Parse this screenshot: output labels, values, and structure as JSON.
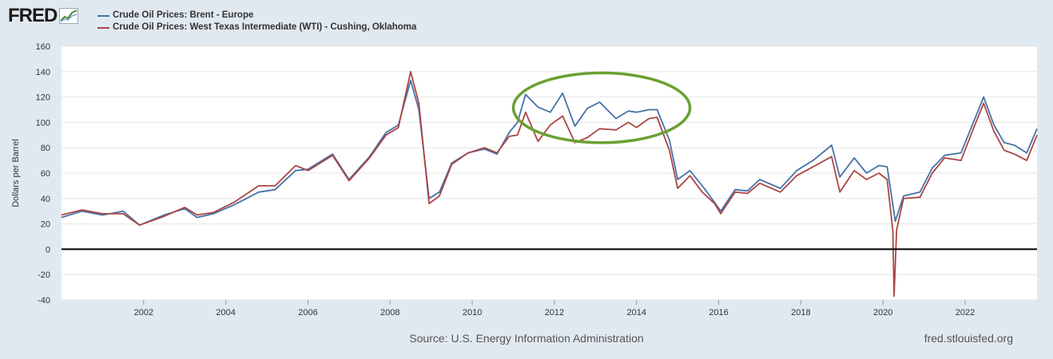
{
  "logo": {
    "text": "FRED"
  },
  "chart_data": {
    "type": "line",
    "title": "",
    "ylabel": "Dollars per Barrel",
    "xlabel": "",
    "ylim": [
      -40,
      160
    ],
    "xlim": [
      2000.0,
      2023.75
    ],
    "yticks": [
      -40,
      -20,
      0,
      20,
      40,
      60,
      80,
      100,
      120,
      140,
      160
    ],
    "xticks": [
      2002,
      2004,
      2006,
      2008,
      2010,
      2012,
      2014,
      2016,
      2018,
      2020,
      2022
    ],
    "grid": true,
    "legend_position": "top-left",
    "colors": {
      "brent": "#4572a7",
      "wti": "#aa4643",
      "highlight": "#6aa032",
      "zero_line": "#000000"
    },
    "series": [
      {
        "name": "Crude Oil Prices: Brent - Europe",
        "x": [
          2000.0,
          2000.5,
          2001.0,
          2001.5,
          2001.9,
          2002.5,
          2003.0,
          2003.3,
          2003.7,
          2004.2,
          2004.8,
          2005.2,
          2005.7,
          2006.0,
          2006.6,
          2007.0,
          2007.5,
          2007.9,
          2008.2,
          2008.5,
          2008.7,
          2008.95,
          2009.2,
          2009.5,
          2009.9,
          2010.3,
          2010.6,
          2010.9,
          2011.1,
          2011.3,
          2011.6,
          2011.9,
          2012.2,
          2012.5,
          2012.8,
          2013.1,
          2013.5,
          2013.8,
          2014.0,
          2014.3,
          2014.5,
          2014.8,
          2015.0,
          2015.3,
          2015.6,
          2015.9,
          2016.05,
          2016.4,
          2016.7,
          2017.0,
          2017.5,
          2017.9,
          2018.3,
          2018.75,
          2018.95,
          2019.3,
          2019.6,
          2019.9,
          2020.1,
          2020.3,
          2020.5,
          2020.9,
          2021.2,
          2021.5,
          2021.9,
          2022.2,
          2022.45,
          2022.7,
          2022.95,
          2023.2,
          2023.5,
          2023.75
        ],
        "values": [
          25,
          30,
          27,
          30,
          19,
          27,
          32,
          25,
          28,
          35,
          45,
          47,
          62,
          63,
          75,
          55,
          73,
          92,
          98,
          133,
          110,
          40,
          45,
          68,
          76,
          79,
          75,
          92,
          100,
          122,
          112,
          108,
          123,
          97,
          111,
          116,
          103,
          109,
          108,
          110,
          110,
          86,
          55,
          62,
          50,
          37,
          30,
          47,
          46,
          55,
          48,
          62,
          70,
          82,
          57,
          72,
          60,
          66,
          65,
          22,
          42,
          45,
          64,
          74,
          76,
          100,
          120,
          98,
          84,
          82,
          76,
          95
        ]
      },
      {
        "name": "Crude Oil Prices: West Texas Intermediate (WTI) - Cushing, Oklahoma",
        "x": [
          2000.0,
          2000.5,
          2001.0,
          2001.5,
          2001.9,
          2002.5,
          2003.0,
          2003.3,
          2003.7,
          2004.2,
          2004.8,
          2005.2,
          2005.7,
          2006.0,
          2006.6,
          2007.0,
          2007.5,
          2007.9,
          2008.2,
          2008.5,
          2008.7,
          2008.95,
          2009.2,
          2009.5,
          2009.9,
          2010.3,
          2010.6,
          2010.9,
          2011.1,
          2011.3,
          2011.6,
          2011.9,
          2012.2,
          2012.5,
          2012.8,
          2013.1,
          2013.5,
          2013.8,
          2014.0,
          2014.3,
          2014.5,
          2014.8,
          2015.0,
          2015.3,
          2015.6,
          2015.9,
          2016.05,
          2016.4,
          2016.7,
          2017.0,
          2017.5,
          2017.9,
          2018.3,
          2018.75,
          2018.95,
          2019.3,
          2019.6,
          2019.9,
          2020.1,
          2020.24,
          2020.27,
          2020.33,
          2020.5,
          2020.9,
          2021.2,
          2021.5,
          2021.9,
          2022.2,
          2022.45,
          2022.7,
          2022.95,
          2023.2,
          2023.5,
          2023.75
        ],
        "values": [
          27,
          31,
          28,
          28,
          19,
          26,
          33,
          27,
          29,
          37,
          50,
          50,
          66,
          62,
          74,
          54,
          72,
          90,
          96,
          140,
          115,
          36,
          42,
          67,
          76,
          80,
          76,
          89,
          90,
          108,
          85,
          98,
          105,
          84,
          88,
          95,
          94,
          100,
          96,
          103,
          104,
          78,
          48,
          58,
          45,
          36,
          28,
          45,
          44,
          52,
          45,
          58,
          65,
          73,
          45,
          62,
          55,
          60,
          55,
          15,
          -37,
          15,
          40,
          41,
          60,
          72,
          70,
          95,
          115,
          93,
          78,
          75,
          70,
          90
        ]
      }
    ],
    "annotations": [
      {
        "type": "ellipse",
        "label": "",
        "x_range": [
          2011.0,
          2015.3
        ],
        "y_range": [
          84,
          139
        ]
      }
    ],
    "source": "Source: U.S. Energy Information Administration",
    "site": "fred.stlouisfed.org"
  }
}
